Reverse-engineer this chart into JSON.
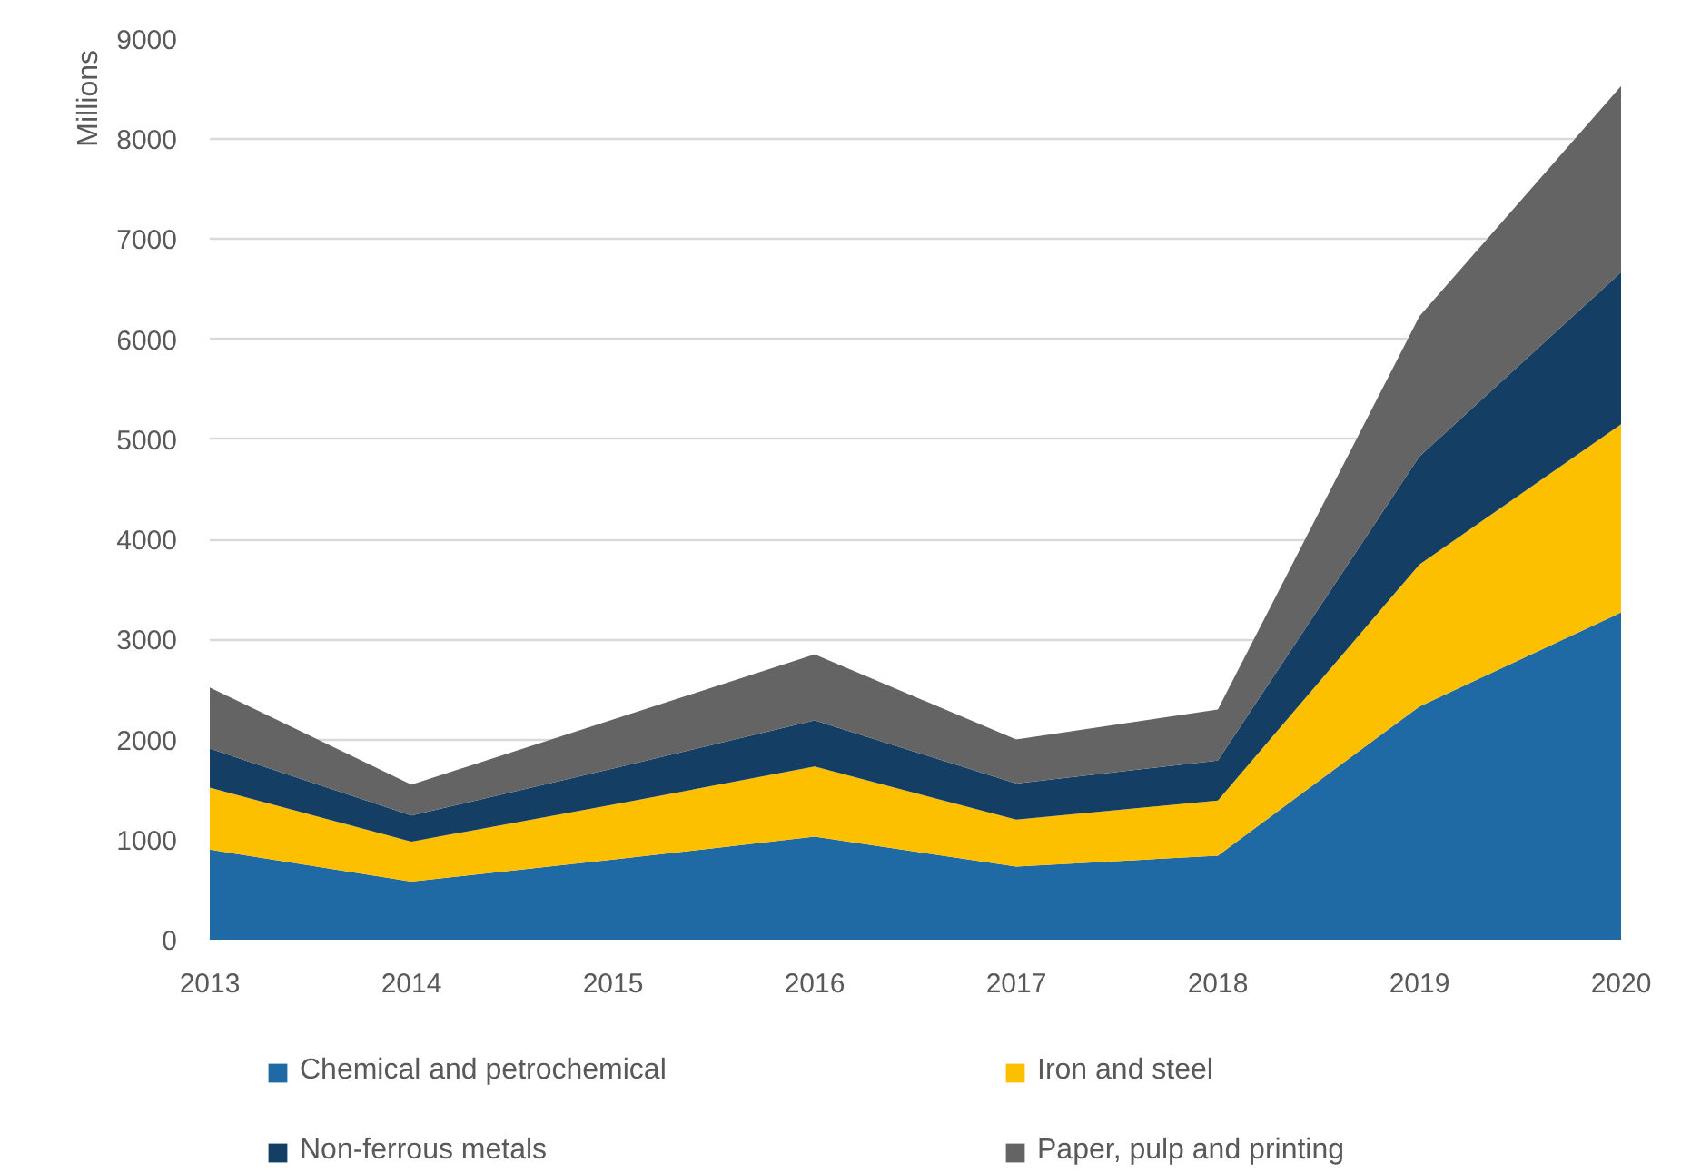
{
  "chart_data": {
    "type": "area",
    "ylabel": "Millions",
    "stacked": true,
    "grid": "y",
    "legend": "bottom",
    "x": [
      2013,
      2014,
      2015,
      2016,
      2017,
      2018,
      2019,
      2020
    ],
    "xlim": [
      2013,
      2020
    ],
    "xticks": [
      2013,
      2014,
      2015,
      2016,
      2017,
      2018,
      2019,
      2020
    ],
    "ylim": [
      0,
      9000
    ],
    "yticks": [
      0,
      1000,
      2000,
      3000,
      4000,
      5000,
      6000,
      7000,
      8000,
      9000
    ],
    "series": [
      {
        "name": "Chemical and petrochemical",
        "color": "#1f6aa5",
        "values": [
          900,
          580,
          800,
          1030,
          730,
          840,
          2330,
          3270
        ]
      },
      {
        "name": "Iron and steel",
        "color": "#fdc000",
        "values": [
          620,
          400,
          550,
          700,
          470,
          550,
          1420,
          1880
        ]
      },
      {
        "name": "Non-ferrous metals",
        "color": "#153e64",
        "values": [
          390,
          260,
          360,
          460,
          360,
          400,
          1080,
          1520
        ]
      },
      {
        "name": "Paper, pulp and printing",
        "color": "#646464",
        "values": [
          610,
          310,
          490,
          660,
          440,
          510,
          1400,
          1860
        ]
      }
    ]
  }
}
